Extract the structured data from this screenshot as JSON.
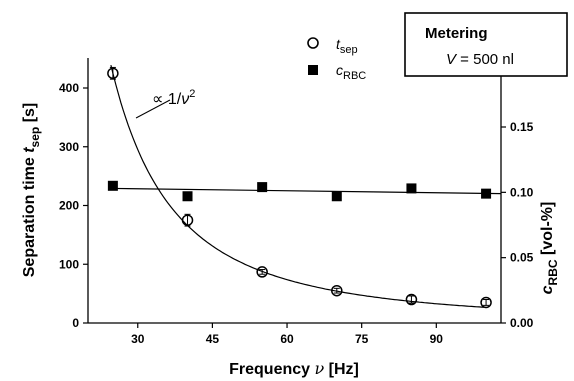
{
  "chart_data": {
    "type": "scatter",
    "x_axis": {
      "title_main": "Frequency ",
      "title_symbol": "ν",
      "title_unit": " [Hz]",
      "range": [
        20,
        103
      ],
      "ticks": [
        30,
        45,
        60,
        75,
        90
      ]
    },
    "y_left": {
      "title_main": "Separation time ",
      "title_symbol": "t",
      "title_sub": "sep",
      "title_unit": " [s]",
      "range": [
        0,
        450
      ],
      "ticks": [
        0,
        100,
        200,
        300,
        400
      ]
    },
    "y_right": {
      "title_symbol": "c",
      "title_sub": "RBC",
      "title_unit": " [vol-%]",
      "range": [
        0,
        0.19
      ],
      "ticks": [
        "0.00",
        "0.05",
        "0.10",
        "0.15"
      ]
    },
    "series": [
      {
        "name_symbol": "t",
        "name_sub": "sep",
        "axis": "left",
        "marker": "open-circle",
        "x": [
          25,
          40,
          55,
          70,
          85,
          100
        ],
        "y": [
          425,
          175,
          87,
          55,
          40,
          35
        ],
        "error": [
          10,
          10,
          4,
          4,
          6,
          5
        ]
      },
      {
        "name_symbol": "c",
        "name_sub": "RBC",
        "axis": "right",
        "marker": "filled-square",
        "x": [
          25,
          40,
          55,
          70,
          85,
          100
        ],
        "y": [
          0.105,
          0.097,
          0.104,
          0.097,
          0.103,
          0.099
        ]
      }
    ],
    "fits": [
      {
        "axis": "left",
        "form": "a/x^2",
        "a": 265625,
        "label_prefix": "∝ 1/",
        "label_symbol": "ν",
        "label_exp": "2"
      },
      {
        "axis": "right",
        "form": "linear",
        "from": [
          25,
          0.103
        ],
        "to": [
          103,
          0.099
        ]
      }
    ],
    "legend_position": "top-center",
    "info_box": {
      "title": "Metering",
      "line_symbol": "V",
      "line_value": " = 500 nl"
    },
    "grid": false
  }
}
